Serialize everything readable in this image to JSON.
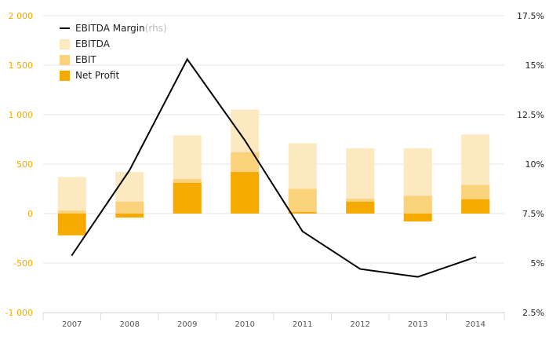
{
  "chart_data": {
    "type": "bar",
    "categories": [
      "2007",
      "2008",
      "2009",
      "2010",
      "2011",
      "2012",
      "2013",
      "2014"
    ],
    "series": [
      {
        "name": "EBITDA",
        "kind": "bar",
        "axis": "left",
        "color": "#fde9c0",
        "values": [
          370,
          420,
          790,
          1050,
          710,
          660,
          660,
          800
        ]
      },
      {
        "name": "EBIT",
        "kind": "bar",
        "axis": "left",
        "color": "#fbd27c",
        "values": [
          30,
          120,
          350,
          620,
          250,
          150,
          180,
          290
        ]
      },
      {
        "name": "Net Profit",
        "kind": "bar",
        "axis": "left",
        "color": "#f5aa00",
        "values": [
          -220,
          -40,
          310,
          420,
          15,
          120,
          -80,
          145
        ]
      },
      {
        "name": "EBITDA Margin",
        "kind": "line",
        "axis": "right",
        "color": "#000000",
        "values": [
          5.4,
          9.7,
          15.3,
          11.2,
          6.6,
          4.7,
          4.3,
          5.3
        ]
      }
    ],
    "yleft": {
      "lim": [
        -1000,
        2000
      ],
      "ticks": [
        -1000,
        -500,
        0,
        500,
        1000,
        1500,
        2000
      ],
      "tick_labels": [
        "-1 000",
        "-500",
        "0",
        "500",
        "1 000",
        "1 500",
        "2 000"
      ]
    },
    "yright": {
      "lim": [
        2.5,
        17.5
      ],
      "ticks": [
        2.5,
        5,
        7.5,
        10,
        12.5,
        15,
        17.5
      ],
      "tick_labels": [
        "2.5%",
        "5%",
        "7.5%",
        "10%",
        "12.5%",
        "15%",
        "17.5%"
      ]
    },
    "legend": {
      "placement": "top-left",
      "items": [
        {
          "label": "EBITDA Margin",
          "suffix": " (rhs)",
          "kind": "line",
          "color": "#000000"
        },
        {
          "label": "EBITDA",
          "kind": "box",
          "color": "#fde9c0"
        },
        {
          "label": "EBIT",
          "kind": "box",
          "color": "#fbd27c"
        },
        {
          "label": "Net Profit",
          "kind": "box",
          "color": "#f5aa00"
        }
      ]
    },
    "grid": true,
    "colors": {
      "left_axis_text": "#f2a900",
      "right_axis_text": "#222222",
      "grid": "#e6e6e6"
    }
  }
}
